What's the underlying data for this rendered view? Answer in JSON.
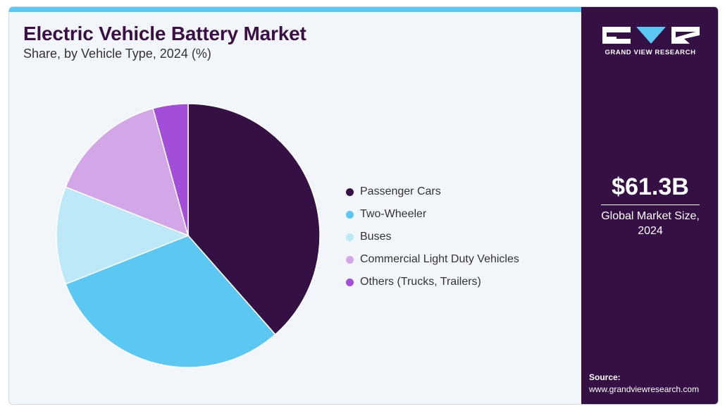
{
  "header": {
    "title": "Electric Vehicle Battery Market",
    "subtitle": "Share, by Vehicle Type, 2024 (%)"
  },
  "chart_data": {
    "type": "pie",
    "title": "Electric Vehicle Battery Market",
    "subtitle": "Share, by Vehicle Type, 2024 (%)",
    "categories": [
      "Passenger Cars",
      "Two-Wheeler",
      "Buses",
      "Commercial Light Duty Vehicles",
      "Others (Trucks, Trailers)"
    ],
    "values": [
      38.5,
      30.5,
      12.0,
      14.7,
      4.3
    ],
    "colors": [
      "#351045",
      "#5ac8f2",
      "#bde8f8",
      "#d3a6e8",
      "#a34ed8"
    ],
    "legend_position": "right",
    "start_angle": "12 o'clock",
    "direction": "clockwise"
  },
  "sidebar": {
    "brand": "GRAND VIEW RESEARCH",
    "metric_value": "$61.3B",
    "metric_label_line1": "Global Market Size,",
    "metric_label_line2": "2024",
    "source_title": "Source:",
    "source_url": "www.grandviewresearch.com"
  },
  "theme": {
    "accent": "#5ac8f2",
    "sidebar_bg": "#351045",
    "title_color": "#3a1044"
  }
}
